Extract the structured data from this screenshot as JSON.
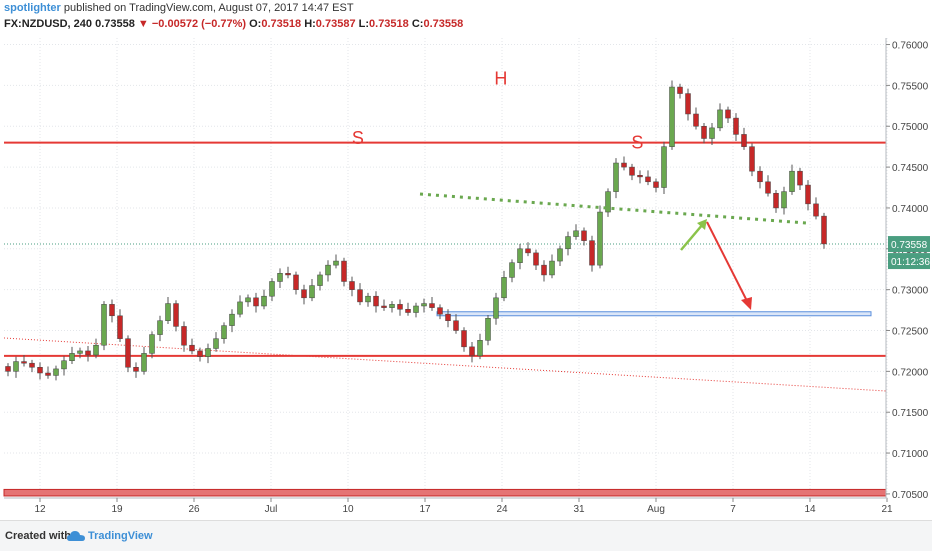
{
  "header": {
    "author": "spotlighter",
    "published": "published on TradingView.com, August 07, 2017 14:47 EST",
    "symbol": "FX:NZDUSD, 240",
    "last": "0.73558",
    "change": "−0.00572 (−0.77%)",
    "ohlc": [
      {
        "k": "O:",
        "v": "0.73518"
      },
      {
        "k": "H:",
        "v": "0.73587"
      },
      {
        "k": "L:",
        "v": "0.73518"
      },
      {
        "k": "C:",
        "v": "0.73558"
      }
    ]
  },
  "footer": {
    "created": "Created with",
    "brand": "TradingView",
    "logo_icon": "tradingview-cloud-icon"
  },
  "chart_data": {
    "type": "candlestick",
    "title": "",
    "ylim": [
      0.7045,
      0.7608
    ],
    "y_ticks": [
      "0.76000",
      "0.75500",
      "0.75000",
      "0.74500",
      "0.74000",
      "0.73500",
      "0.73000",
      "0.72500",
      "0.72000",
      "0.71500",
      "0.71000",
      "0.70500"
    ],
    "x_ticks": [
      "12",
      "19",
      "26",
      "Jul",
      "10",
      "17",
      "24",
      "31",
      "Aug",
      "7",
      "14",
      "21"
    ],
    "grid": true,
    "price_label": "0.73558",
    "countdown_label": "01:12:36",
    "colors": {
      "up": "#6aa84f",
      "down": "#c62828",
      "resistance": "#e53935",
      "support": "#5b8fdc",
      "neckline": "#6aa84f"
    },
    "annotations": [
      {
        "text": "S",
        "x_index": 4.7,
        "price": 0.7478
      },
      {
        "text": "H",
        "x_index": 6.55,
        "price": 0.7551
      },
      {
        "text": "S",
        "x_index": 8.33,
        "price": 0.7473
      }
    ],
    "horizontal_lines": [
      {
        "price": 0.748,
        "role": "resistance"
      },
      {
        "price": 0.7219,
        "role": "support"
      },
      {
        "price": 0.72705,
        "role": "target-zone"
      }
    ],
    "closes": [
      0.72,
      0.7212,
      0.721,
      0.7205,
      0.7198,
      0.7195,
      0.7203,
      0.7213,
      0.7222,
      0.7225,
      0.722,
      0.7232,
      0.7282,
      0.7268,
      0.724,
      0.7205,
      0.72,
      0.7222,
      0.7245,
      0.7262,
      0.7283,
      0.7255,
      0.7232,
      0.7225,
      0.7218,
      0.7228,
      0.724,
      0.7256,
      0.727,
      0.7285,
      0.729,
      0.728,
      0.7292,
      0.731,
      0.732,
      0.7318,
      0.73,
      0.729,
      0.7305,
      0.7318,
      0.733,
      0.7335,
      0.731,
      0.73,
      0.7285,
      0.7292,
      0.728,
      0.7278,
      0.7282,
      0.7276,
      0.7272,
      0.728,
      0.7283,
      0.7278,
      0.727,
      0.7262,
      0.725,
      0.723,
      0.7219,
      0.7238,
      0.7265,
      0.729,
      0.7315,
      0.7333,
      0.735,
      0.7345,
      0.733,
      0.7318,
      0.7335,
      0.735,
      0.7365,
      0.7372,
      0.736,
      0.733,
      0.7395,
      0.742,
      0.7455,
      0.745,
      0.744,
      0.7438,
      0.7432,
      0.7425,
      0.7475,
      0.7548,
      0.754,
      0.7515,
      0.75,
      0.7485,
      0.7498,
      0.752,
      0.751,
      0.749,
      0.7475,
      0.7445,
      0.7432,
      0.7418,
      0.74,
      0.742,
      0.7445,
      0.7428,
      0.7405,
      0.739,
      0.7356
    ],
    "overlays": [
      "dotted-neckline",
      "dotted-trendline",
      "green-arrow-retest",
      "red-arrow-target"
    ]
  }
}
